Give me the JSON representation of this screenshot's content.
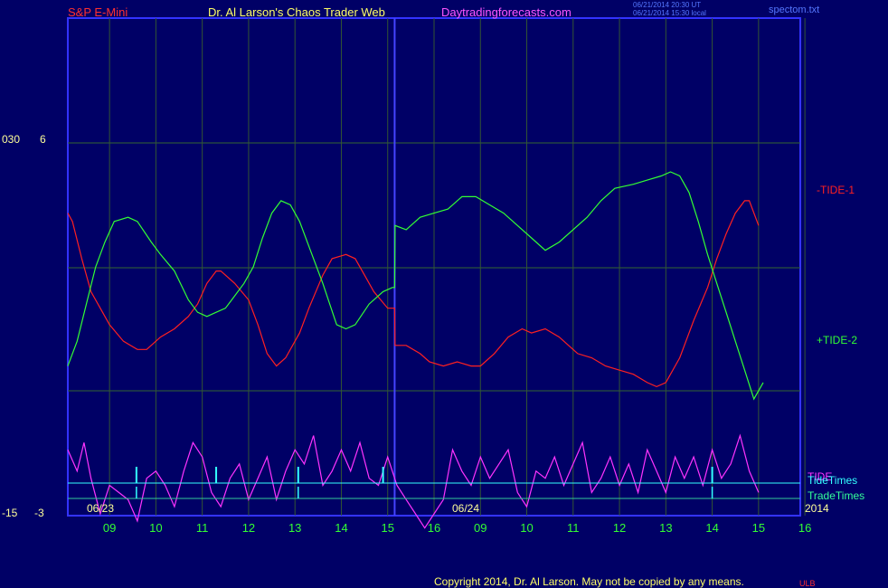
{
  "header": {
    "instrument": "S&P E-Mini",
    "site_title": "Dr. Al Larson's Chaos Trader Web",
    "site_url": "Daytradingforecasts.com",
    "stamp_line1": "06/21/2014 20:30 UT",
    "stamp_line2": "06/21/2014 15:30 local",
    "filename": "spectom.txt"
  },
  "footer": {
    "copyright": "Copyright 2014, Dr. Al Larson. May not be copied by any means.",
    "corner_mark": "ULB"
  },
  "axis": {
    "left_top_a": "030",
    "left_top_b": "6",
    "left_bottom_a": "-15",
    "left_bottom_b": "-3",
    "year": "2014"
  },
  "colors": {
    "background": "#000066",
    "border": "#3333ff",
    "tide1": "#ff2020",
    "tide2": "#33ff33",
    "tide": "#ff33ff",
    "tidetimes": "#33ffff",
    "tradetimes": "#33cc99",
    "hour_labels": "#33ff33"
  },
  "chart_data": {
    "type": "line",
    "x_labels": [
      "09",
      "10",
      "11",
      "12",
      "13",
      "14",
      "15",
      "16",
      "09",
      "10",
      "11",
      "12",
      "13",
      "14",
      "15",
      "16"
    ],
    "date_labels": [
      "06/23",
      "06/24"
    ],
    "series": [
      {
        "name": "-TIDE-1",
        "color": "#ff2020",
        "points": [
          [
            0,
            4.3
          ],
          [
            0.1,
            4.1
          ],
          [
            0.3,
            3.2
          ],
          [
            0.5,
            2.4
          ],
          [
            0.7,
            2.0
          ],
          [
            0.9,
            1.6
          ],
          [
            1.2,
            1.2
          ],
          [
            1.5,
            1.0
          ],
          [
            1.7,
            1.0
          ],
          [
            2.0,
            1.3
          ],
          [
            2.3,
            1.5
          ],
          [
            2.6,
            1.8
          ],
          [
            2.8,
            2.1
          ],
          [
            3.0,
            2.6
          ],
          [
            3.2,
            2.9
          ],
          [
            3.3,
            2.9
          ],
          [
            3.6,
            2.6
          ],
          [
            3.9,
            2.2
          ],
          [
            4.1,
            1.6
          ],
          [
            4.3,
            0.9
          ],
          [
            4.5,
            0.6
          ],
          [
            4.7,
            0.8
          ],
          [
            5.0,
            1.4
          ],
          [
            5.2,
            2.0
          ],
          [
            5.5,
            2.8
          ],
          [
            5.7,
            3.2
          ],
          [
            6.0,
            3.3
          ],
          [
            6.2,
            3.2
          ],
          [
            6.4,
            2.8
          ],
          [
            6.6,
            2.4
          ],
          [
            6.9,
            2.0
          ],
          [
            7.05,
            2.0
          ],
          [
            7.06,
            1.1
          ],
          [
            7.3,
            1.1
          ],
          [
            7.6,
            0.9
          ],
          [
            7.8,
            0.7
          ],
          [
            8.1,
            0.6
          ],
          [
            8.4,
            0.7
          ],
          [
            8.7,
            0.6
          ],
          [
            8.9,
            0.6
          ],
          [
            9.2,
            0.9
          ],
          [
            9.5,
            1.3
          ],
          [
            9.8,
            1.5
          ],
          [
            10.0,
            1.4
          ],
          [
            10.3,
            1.5
          ],
          [
            10.6,
            1.3
          ],
          [
            10.8,
            1.1
          ],
          [
            11.0,
            0.9
          ],
          [
            11.3,
            0.8
          ],
          [
            11.6,
            0.6
          ],
          [
            11.9,
            0.5
          ],
          [
            12.2,
            0.4
          ],
          [
            12.5,
            0.2
          ],
          [
            12.7,
            0.1
          ],
          [
            12.9,
            0.2
          ],
          [
            13.2,
            0.8
          ],
          [
            13.5,
            1.7
          ],
          [
            13.8,
            2.5
          ],
          [
            14.0,
            3.2
          ],
          [
            14.2,
            3.8
          ],
          [
            14.4,
            4.3
          ],
          [
            14.6,
            4.6
          ],
          [
            14.7,
            4.6
          ],
          [
            14.9,
            4.0
          ]
        ]
      },
      {
        "name": "+TIDE-2",
        "color": "#33ff33",
        "points": [
          [
            0,
            0.6
          ],
          [
            0.2,
            1.2
          ],
          [
            0.4,
            2.1
          ],
          [
            0.6,
            3.0
          ],
          [
            0.8,
            3.6
          ],
          [
            1.0,
            4.1
          ],
          [
            1.3,
            4.2
          ],
          [
            1.5,
            4.1
          ],
          [
            1.8,
            3.6
          ],
          [
            2.0,
            3.3
          ],
          [
            2.3,
            2.9
          ],
          [
            2.6,
            2.2
          ],
          [
            2.8,
            1.9
          ],
          [
            3.0,
            1.8
          ],
          [
            3.2,
            1.9
          ],
          [
            3.4,
            2.0
          ],
          [
            3.6,
            2.3
          ],
          [
            3.8,
            2.6
          ],
          [
            4.0,
            3.0
          ],
          [
            4.2,
            3.7
          ],
          [
            4.4,
            4.3
          ],
          [
            4.6,
            4.6
          ],
          [
            4.8,
            4.5
          ],
          [
            5.0,
            4.1
          ],
          [
            5.3,
            3.2
          ],
          [
            5.5,
            2.6
          ],
          [
            5.8,
            1.6
          ],
          [
            6.0,
            1.5
          ],
          [
            6.2,
            1.6
          ],
          [
            6.5,
            2.1
          ],
          [
            6.8,
            2.4
          ],
          [
            7.0,
            2.5
          ],
          [
            7.05,
            2.5
          ],
          [
            7.06,
            4.0
          ],
          [
            7.3,
            3.9
          ],
          [
            7.6,
            4.2
          ],
          [
            7.9,
            4.3
          ],
          [
            8.2,
            4.4
          ],
          [
            8.5,
            4.7
          ],
          [
            8.8,
            4.7
          ],
          [
            9.1,
            4.5
          ],
          [
            9.4,
            4.3
          ],
          [
            9.7,
            4.0
          ],
          [
            10.0,
            3.7
          ],
          [
            10.3,
            3.4
          ],
          [
            10.6,
            3.6
          ],
          [
            10.9,
            3.9
          ],
          [
            11.2,
            4.2
          ],
          [
            11.5,
            4.6
          ],
          [
            11.8,
            4.9
          ],
          [
            12.2,
            5.0
          ],
          [
            12.5,
            5.1
          ],
          [
            12.8,
            5.2
          ],
          [
            13.0,
            5.3
          ],
          [
            13.2,
            5.2
          ],
          [
            13.4,
            4.8
          ],
          [
            13.6,
            4.1
          ],
          [
            13.8,
            3.3
          ],
          [
            14.0,
            2.6
          ],
          [
            14.2,
            1.9
          ],
          [
            14.4,
            1.2
          ],
          [
            14.6,
            0.5
          ],
          [
            14.8,
            -0.2
          ],
          [
            15.0,
            0.2
          ]
        ]
      },
      {
        "name": "TIDE",
        "color": "#ff33ff",
        "points": [
          [
            0,
            -2.1
          ],
          [
            0.2,
            -2.4
          ],
          [
            0.35,
            -2.0
          ],
          [
            0.5,
            -2.5
          ],
          [
            0.7,
            -3.0
          ],
          [
            0.9,
            -2.6
          ],
          [
            1.1,
            -2.7
          ],
          [
            1.3,
            -2.8
          ],
          [
            1.5,
            -3.1
          ],
          [
            1.7,
            -2.5
          ],
          [
            1.9,
            -2.4
          ],
          [
            2.1,
            -2.6
          ],
          [
            2.3,
            -2.9
          ],
          [
            2.5,
            -2.4
          ],
          [
            2.7,
            -2.0
          ],
          [
            2.9,
            -2.2
          ],
          [
            3.1,
            -2.7
          ],
          [
            3.3,
            -2.9
          ],
          [
            3.5,
            -2.5
          ],
          [
            3.7,
            -2.3
          ],
          [
            3.9,
            -2.8
          ],
          [
            4.1,
            -2.5
          ],
          [
            4.3,
            -2.2
          ],
          [
            4.5,
            -2.8
          ],
          [
            4.7,
            -2.4
          ],
          [
            4.9,
            -2.1
          ],
          [
            5.1,
            -2.3
          ],
          [
            5.3,
            -1.9
          ],
          [
            5.5,
            -2.6
          ],
          [
            5.7,
            -2.4
          ],
          [
            5.9,
            -2.1
          ],
          [
            6.1,
            -2.4
          ],
          [
            6.3,
            -2.0
          ],
          [
            6.5,
            -2.5
          ],
          [
            6.7,
            -2.6
          ],
          [
            6.9,
            -2.2
          ],
          [
            7.1,
            -2.6
          ],
          [
            7.3,
            -2.8
          ],
          [
            7.5,
            -3.0
          ],
          [
            7.7,
            -3.2
          ],
          [
            7.9,
            -3.0
          ],
          [
            8.1,
            -2.8
          ],
          [
            8.3,
            -2.1
          ],
          [
            8.5,
            -2.4
          ],
          [
            8.7,
            -2.6
          ],
          [
            8.9,
            -2.2
          ],
          [
            9.1,
            -2.5
          ],
          [
            9.3,
            -2.3
          ],
          [
            9.5,
            -2.1
          ],
          [
            9.7,
            -2.7
          ],
          [
            9.9,
            -2.9
          ],
          [
            10.1,
            -2.4
          ],
          [
            10.3,
            -2.5
          ],
          [
            10.5,
            -2.2
          ],
          [
            10.7,
            -2.6
          ],
          [
            10.9,
            -2.3
          ],
          [
            11.1,
            -2.0
          ],
          [
            11.3,
            -2.7
          ],
          [
            11.5,
            -2.5
          ],
          [
            11.7,
            -2.2
          ],
          [
            11.9,
            -2.6
          ],
          [
            12.1,
            -2.3
          ],
          [
            12.3,
            -2.7
          ],
          [
            12.5,
            -2.1
          ],
          [
            12.7,
            -2.4
          ],
          [
            12.9,
            -2.7
          ],
          [
            13.1,
            -2.2
          ],
          [
            13.3,
            -2.5
          ],
          [
            13.5,
            -2.2
          ],
          [
            13.7,
            -2.6
          ],
          [
            13.9,
            -2.1
          ],
          [
            14.1,
            -2.5
          ],
          [
            14.3,
            -2.3
          ],
          [
            14.5,
            -1.9
          ],
          [
            14.7,
            -2.4
          ],
          [
            14.9,
            -2.7
          ]
        ]
      }
    ],
    "legend": [
      {
        "label": "-TIDE-1",
        "color": "#ff2020"
      },
      {
        "label": "+TIDE-2",
        "color": "#33ff33"
      },
      {
        "label": "TIDE",
        "color": "#ff33ff"
      },
      {
        "label": "TideTimes",
        "color": "#33ffff"
      },
      {
        "label": "TradeTimes",
        "color": "#33cc99"
      }
    ],
    "tide_time_marks": [
      1.48,
      3.2,
      4.97,
      6.8,
      13.9
    ],
    "trade_time_marks": [
      1.48,
      4.97,
      13.9
    ],
    "day_boundary_x": 7.05,
    "upper_ylim": [
      0,
      6
    ],
    "lower_ylim": [
      -3,
      -1.5
    ]
  }
}
